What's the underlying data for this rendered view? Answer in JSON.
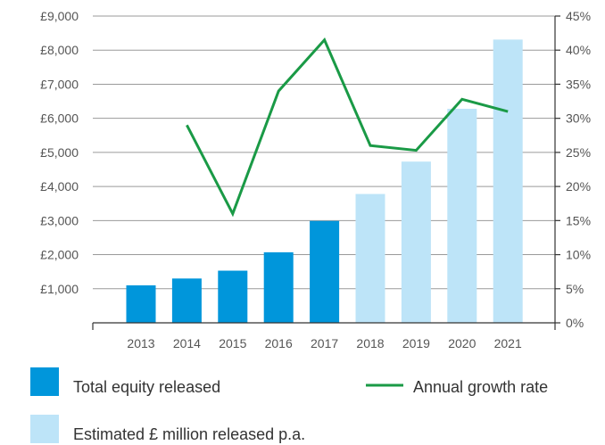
{
  "chart_data": {
    "type": "bar",
    "title": "",
    "xlabel": "",
    "ylabel": "",
    "categories": [
      "2013",
      "2014",
      "2015",
      "2016",
      "2017",
      "2018",
      "2019",
      "2020",
      "2021"
    ],
    "series": [
      {
        "name": "Total equity released",
        "type": "bar",
        "axis": "left",
        "color": "#0096db",
        "values": [
          1100,
          1300,
          1530,
          2070,
          2990,
          null,
          null,
          null,
          null
        ]
      },
      {
        "name": "Estimated £ million released p.a.",
        "type": "bar",
        "axis": "left",
        "color": "#bde4f8",
        "values": [
          null,
          null,
          null,
          null,
          null,
          3780,
          4730,
          6280,
          8310
        ]
      },
      {
        "name": "Annual growth rate",
        "type": "line",
        "axis": "right",
        "color": "#1a9a46",
        "values": [
          null,
          29,
          16,
          34,
          41.5,
          26,
          25.3,
          32.8,
          31
        ]
      }
    ],
    "y_left": {
      "lim": [
        0,
        9000
      ],
      "ticks": [
        1000,
        2000,
        3000,
        4000,
        5000,
        6000,
        7000,
        8000,
        9000
      ],
      "tick_labels": [
        "£1,000",
        "£2,000",
        "£3,000",
        "£4,000",
        "£5,000",
        "£6,000",
        "£7,000",
        "£8,000",
        "£9,000"
      ]
    },
    "y_right": {
      "lim": [
        0,
        45
      ],
      "ticks": [
        0,
        5,
        10,
        15,
        20,
        25,
        30,
        35,
        40,
        45
      ],
      "tick_labels": [
        "0%",
        "5%",
        "10%",
        "15%",
        "20%",
        "25%",
        "30%",
        "35%",
        "40%",
        "45%"
      ]
    },
    "grid": true,
    "legend_position": "bottom"
  },
  "legend": {
    "total_label": "Total equity released",
    "growth_label": "Annual growth rate",
    "estimated_label": "Estimated £ million released p.a."
  }
}
